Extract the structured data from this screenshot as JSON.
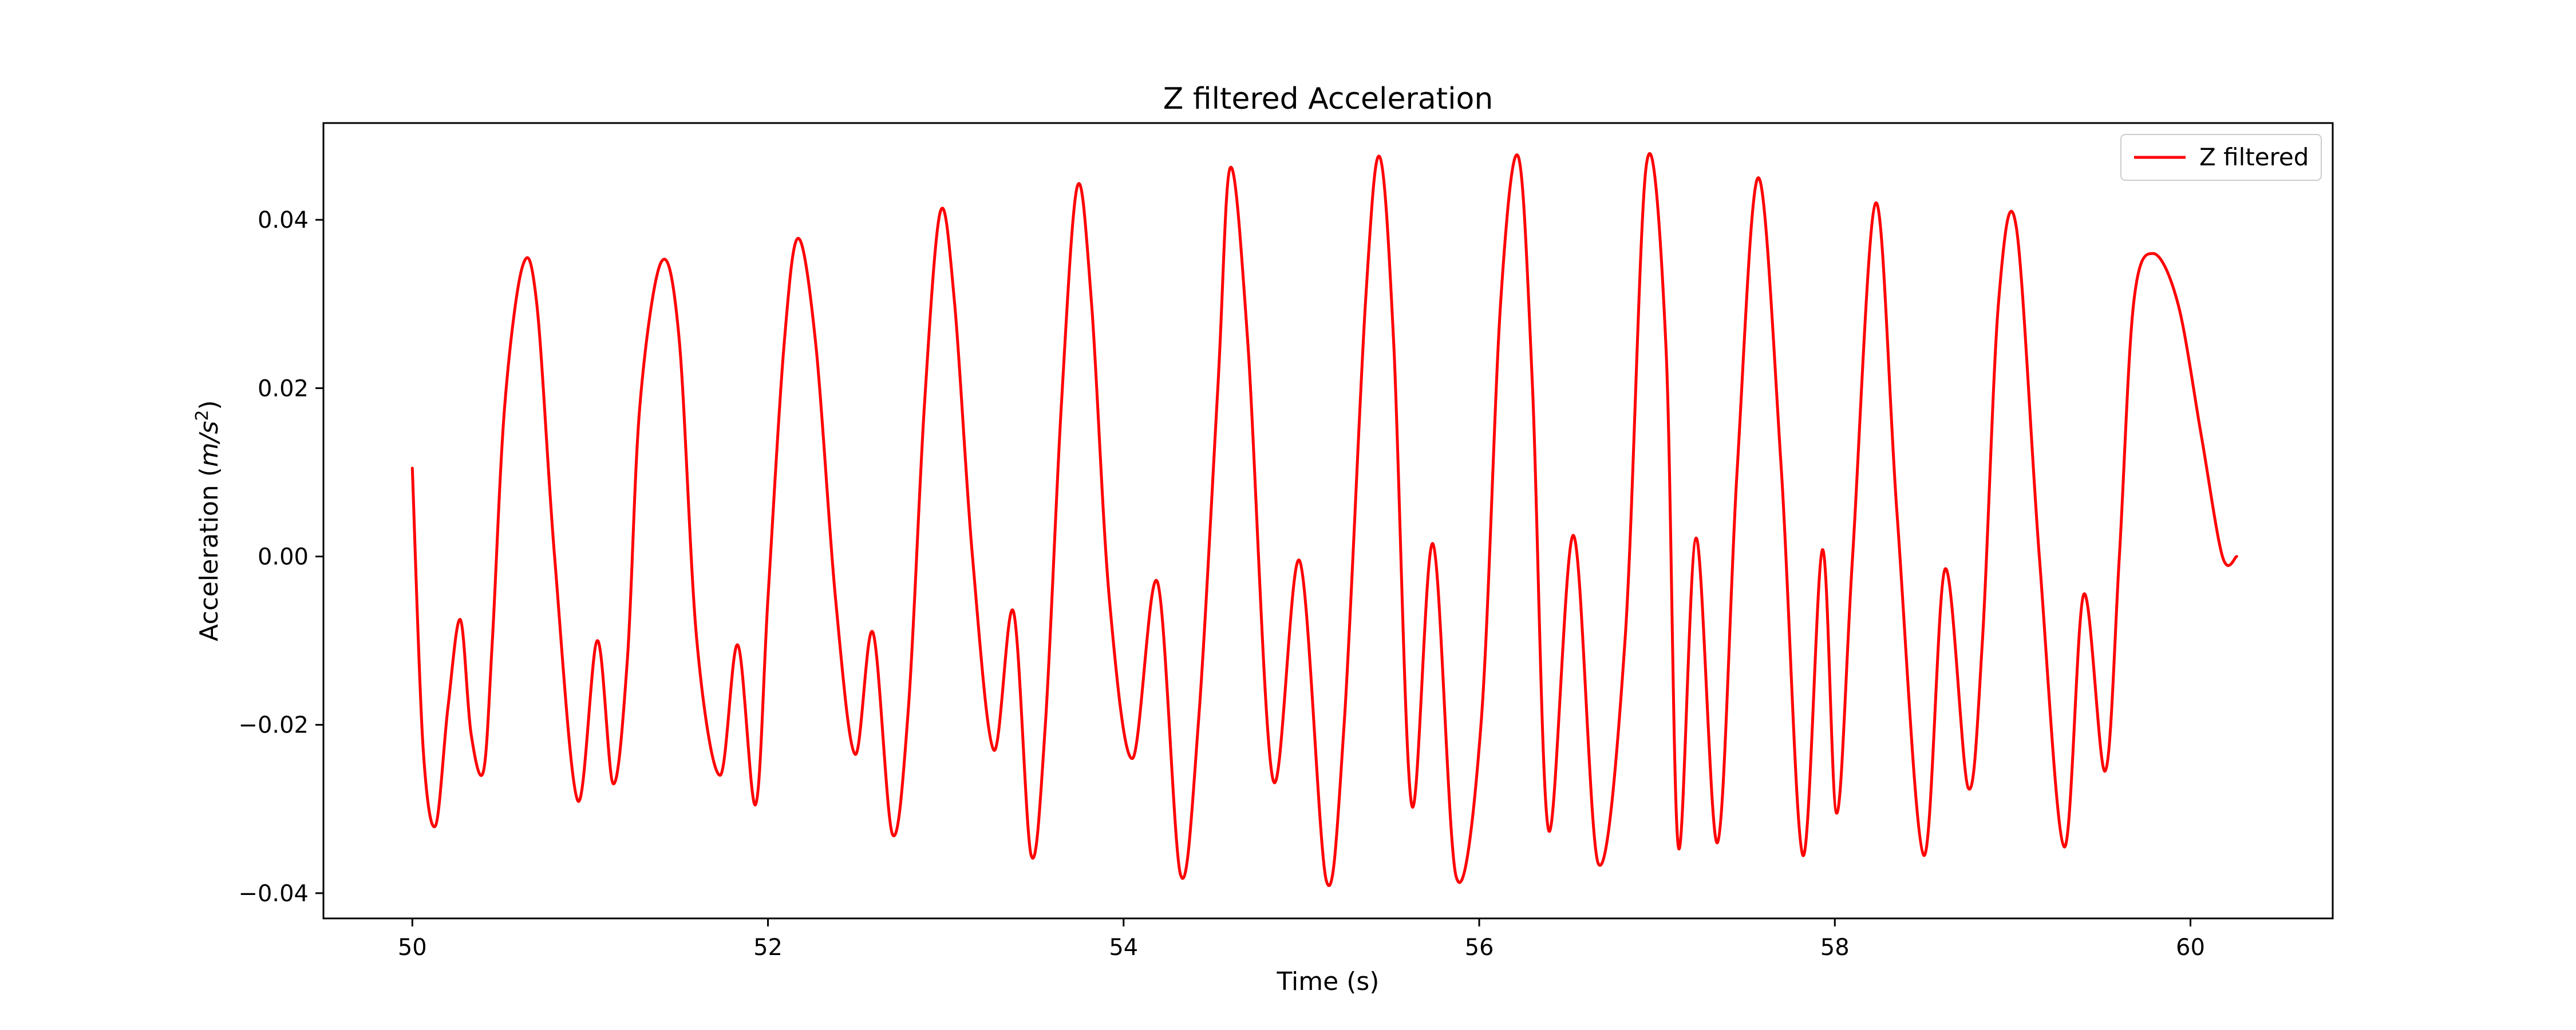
{
  "chart_data": {
    "type": "line",
    "title": "Z filtered Acceleration",
    "xlabel": "Time (s)",
    "ylabel_main": "Acceleration (",
    "ylabel_unit": "m/s",
    "ylabel_exp": "2",
    "ylabel_close": ")",
    "xlim": [
      49.5,
      60.8
    ],
    "ylim": [
      -0.043,
      0.0515
    ],
    "xticks": [
      50,
      52,
      54,
      56,
      58,
      60
    ],
    "yticks": [
      -0.04,
      -0.02,
      0.0,
      0.02,
      0.04
    ],
    "xtick_labels": [
      "50",
      "52",
      "54",
      "56",
      "58",
      "60"
    ],
    "ytick_labels": [
      "−0.04",
      "−0.02",
      "0.00",
      "0.02",
      "0.04"
    ],
    "legend_position": "upper right",
    "grid": false,
    "series": [
      {
        "name": "Z filtered",
        "color": "#ff0000",
        "x": [
          50.0,
          50.06,
          50.13,
          50.2,
          50.27,
          50.33,
          50.4,
          50.45,
          50.52,
          50.62,
          50.7,
          50.8,
          50.93,
          51.04,
          51.13,
          51.21,
          51.28,
          51.4,
          51.5,
          51.6,
          51.73,
          51.83,
          51.93,
          52.0,
          52.09,
          52.17,
          52.27,
          52.38,
          52.49,
          52.59,
          52.7,
          52.79,
          52.88,
          52.97,
          53.05,
          53.15,
          53.27,
          53.38,
          53.48,
          53.56,
          53.65,
          53.74,
          53.82,
          53.92,
          54.05,
          54.19,
          54.32,
          54.42,
          54.53,
          54.6,
          54.7,
          54.84,
          54.99,
          55.14,
          55.24,
          55.36,
          55.44,
          55.52,
          55.62,
          55.74,
          55.87,
          56.01,
          56.12,
          56.22,
          56.3,
          56.39,
          56.53,
          56.67,
          56.82,
          56.94,
          57.05,
          57.12,
          57.22,
          57.34,
          57.45,
          57.57,
          57.7,
          57.82,
          57.93,
          58.01,
          58.1,
          58.23,
          58.35,
          58.5,
          58.62,
          58.75,
          58.83,
          58.92,
          59.02,
          59.15,
          59.29,
          59.4,
          59.52,
          59.6,
          59.68,
          59.79,
          59.93,
          60.06,
          60.18,
          60.26
        ],
        "values": [
          0.0105,
          -0.0225,
          -0.032,
          -0.018,
          -0.0075,
          -0.021,
          -0.0255,
          -0.01,
          0.018,
          0.0345,
          0.03,
          0.0,
          -0.029,
          -0.01,
          -0.027,
          -0.012,
          0.018,
          0.035,
          0.026,
          -0.01,
          -0.026,
          -0.0105,
          -0.0295,
          -0.005,
          0.025,
          0.0378,
          0.025,
          -0.005,
          -0.0235,
          -0.009,
          -0.033,
          -0.018,
          0.018,
          0.041,
          0.03,
          0.0,
          -0.023,
          -0.0065,
          -0.0355,
          -0.02,
          0.018,
          0.044,
          0.03,
          -0.005,
          -0.024,
          -0.003,
          -0.0378,
          -0.02,
          0.02,
          0.0462,
          0.025,
          -0.0265,
          -0.0005,
          -0.0385,
          -0.02,
          0.03,
          0.0475,
          0.025,
          -0.0295,
          0.0015,
          -0.038,
          -0.02,
          0.03,
          0.0475,
          0.02,
          -0.0325,
          0.0025,
          -0.0365,
          -0.01,
          0.0465,
          0.025,
          -0.0345,
          0.0022,
          -0.034,
          0.01,
          0.045,
          0.01,
          -0.0355,
          0.0008,
          -0.0305,
          0.0,
          0.042,
          0.005,
          -0.0355,
          -0.0015,
          -0.0275,
          -0.01,
          0.03,
          0.0392,
          0.0,
          -0.0345,
          -0.0045,
          -0.0255,
          0.0,
          0.03,
          0.036,
          0.03,
          0.0145,
          0.0,
          0.0
        ]
      }
    ]
  }
}
